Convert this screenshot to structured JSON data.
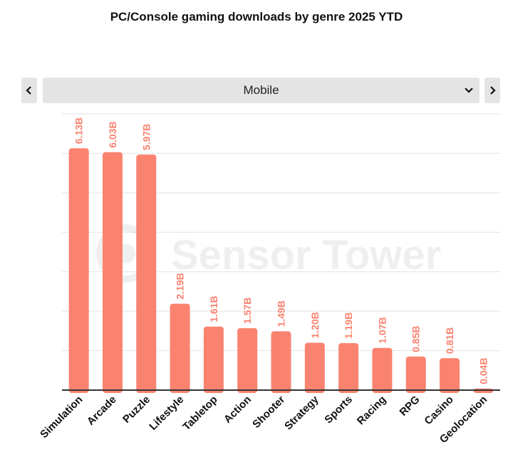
{
  "title": "PC/Console gaming downloads by genre 2025 YTD",
  "selector": {
    "value": "Mobile",
    "prev_icon": "chevron-left-icon",
    "next_icon": "chevron-right-icon",
    "dropdown_icon": "chevron-down-icon"
  },
  "watermark": "Sensor Tower",
  "colors": {
    "bar": "#fa8370",
    "label": "#fa8370",
    "grid": "#e3e3e3",
    "axis": "#333333"
  },
  "chart_data": {
    "type": "bar",
    "title": "PC/Console gaming downloads by genre 2025 YTD",
    "xlabel": "",
    "ylabel": "",
    "categories": [
      "Simulation",
      "Arcade",
      "Puzzle",
      "Lifestyle",
      "Tabletop",
      "Action",
      "Shooter",
      "Strategy",
      "Sports",
      "Racing",
      "RPG",
      "Casino",
      "Geolocation"
    ],
    "values": [
      6.13,
      6.03,
      5.97,
      2.19,
      1.61,
      1.57,
      1.49,
      1.2,
      1.19,
      1.07,
      0.85,
      0.81,
      0.04
    ],
    "value_labels": [
      "6.13B",
      "6.03B",
      "5.97B",
      "2.19B",
      "1.61B",
      "1.57B",
      "1.49B",
      "1.20B",
      "1.19B",
      "1.07B",
      "0.85B",
      "0.81B",
      "0.04B"
    ],
    "ylim": [
      0,
      7
    ],
    "grid": true,
    "legend": "none"
  }
}
